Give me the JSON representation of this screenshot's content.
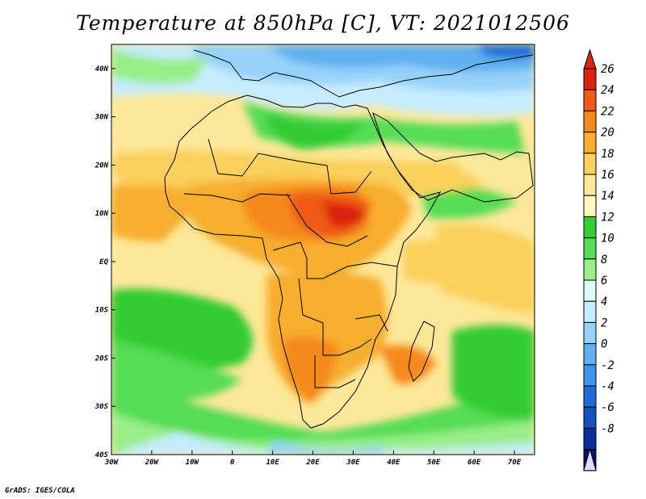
{
  "title": "Temperature at 850hPa [C], VT: 2021012506",
  "credit": "GrADS: IGES/COLA",
  "map": {
    "projection": "lat-lon",
    "lon_range": [
      -30,
      75
    ],
    "lat_range": [
      -40,
      45
    ],
    "lon_ticks": [
      {
        "value": -30,
        "label": "30W"
      },
      {
        "value": -20,
        "label": "20W"
      },
      {
        "value": -10,
        "label": "10W"
      },
      {
        "value": 0,
        "label": "0"
      },
      {
        "value": 10,
        "label": "10E"
      },
      {
        "value": 20,
        "label": "20E"
      },
      {
        "value": 30,
        "label": "30E"
      },
      {
        "value": 40,
        "label": "40E"
      },
      {
        "value": 50,
        "label": "50E"
      },
      {
        "value": 60,
        "label": "60E"
      },
      {
        "value": 70,
        "label": "70E"
      }
    ],
    "lat_ticks": [
      {
        "value": 40,
        "label": "40N"
      },
      {
        "value": 30,
        "label": "30N"
      },
      {
        "value": 20,
        "label": "20N"
      },
      {
        "value": 10,
        "label": "10N"
      },
      {
        "value": 0,
        "label": "EQ"
      },
      {
        "value": -10,
        "label": "10S"
      },
      {
        "value": -20,
        "label": "20S"
      },
      {
        "value": -30,
        "label": "30S"
      },
      {
        "value": -40,
        "label": "40S"
      }
    ]
  },
  "colorbar": {
    "labels": [
      "26",
      "24",
      "22",
      "20",
      "18",
      "16",
      "14",
      "12",
      "10",
      "8",
      "6",
      "4",
      "2",
      "0",
      "-2",
      "-4",
      "-6",
      "-8"
    ],
    "top_arrow_color": "#d92211",
    "bottom_arrow_color": "#dcdcff",
    "colors": [
      "#d92211",
      "#f05a16",
      "#f5891d",
      "#f8ae2e",
      "#fbd05b",
      "#fde899",
      "#fef8c0",
      "#33cc33",
      "#55dd55",
      "#99ee88",
      "#dcfdf6",
      "#c6ecff",
      "#96d2fa",
      "#5fb0f0",
      "#3c95eb",
      "#1e6cd7",
      "#1550bf",
      "#0a2d9c",
      "#0a1464"
    ]
  }
}
